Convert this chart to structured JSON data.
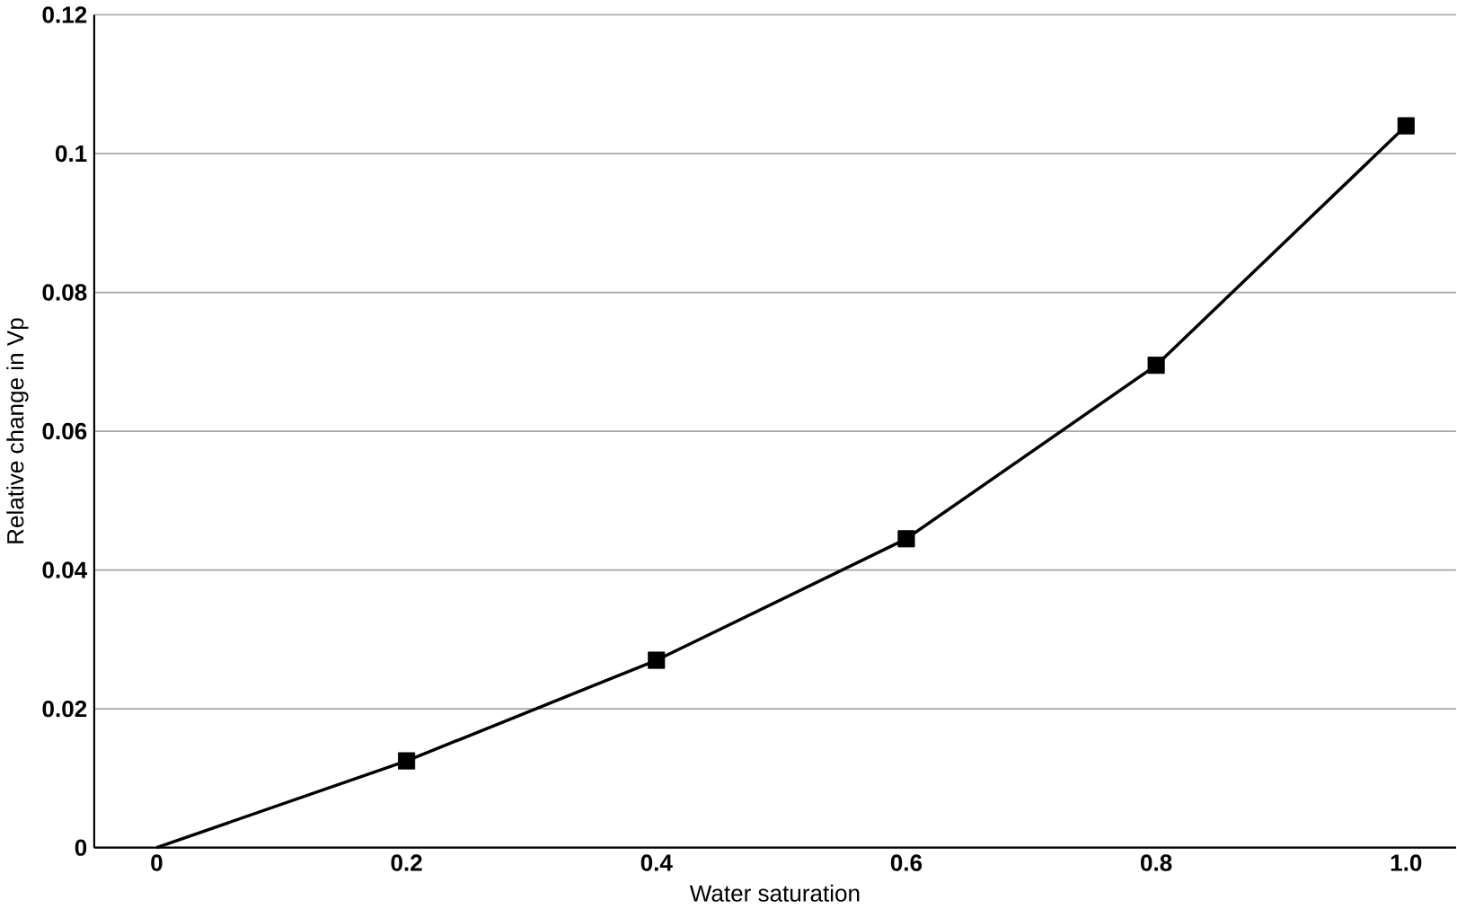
{
  "chart_data": {
    "type": "line",
    "xlabel": "Water saturation",
    "ylabel": "Relative change in Vp",
    "series": [
      {
        "color": "#000000",
        "marker": "none",
        "x": [
          0,
          0.2,
          0.4,
          0.6,
          0.8,
          1.0
        ],
        "values": [
          0,
          0.0125,
          0.027,
          0.0445,
          0.0695,
          0.104
        ]
      },
      {
        "type": "scatter",
        "color": "#000000",
        "marker": "square",
        "x": [
          0.2,
          0.4,
          0.6,
          0.8,
          1.0
        ],
        "values": [
          0.0125,
          0.027,
          0.0445,
          0.0695,
          0.104
        ]
      }
    ],
    "xlim": [
      -0.05,
      1.04
    ],
    "ylim": [
      0,
      0.12
    ],
    "xticks": [
      0,
      0.2,
      0.4,
      0.6,
      0.8,
      {
        "value": 1,
        "label": "1.0"
      }
    ],
    "yticks": [
      0,
      0.02,
      0.04,
      0.06,
      0.08,
      0.1,
      0.12
    ],
    "grid": "y"
  }
}
